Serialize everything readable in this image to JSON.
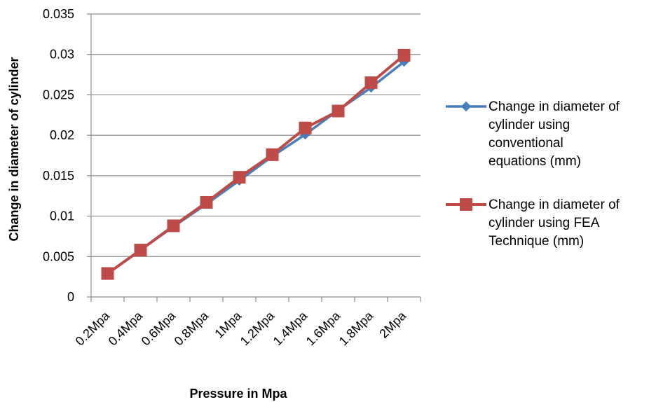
{
  "chart_data": {
    "type": "line",
    "title": "",
    "xlabel": "Pressure in Mpa",
    "ylabel": "Change in diameter of cylinder",
    "categories": [
      "0.2Mpa",
      "0.4Mpa",
      "0.6Mpa",
      "0.8Mpa",
      "1Mpa",
      "1.2Mpa",
      "1.4Mpa",
      "1.6Mpa",
      "1.8Mpa",
      "2Mpa"
    ],
    "ylim": [
      0,
      0.035
    ],
    "yticks": [
      "0",
      "0.005",
      "0.01",
      "0.015",
      "0.02",
      "0.025",
      "0.03",
      "0.035"
    ],
    "grid": "horizontal",
    "legend_position": "right",
    "series": [
      {
        "name": "Change in diameter of cylinder using conventional equations (mm)",
        "legend_lines": [
          "Change in diameter of",
          "cylinder using",
          "conventional",
          "equations (mm)"
        ],
        "marker": "diamond",
        "color": "#4a7ebb",
        "values": [
          0.0029,
          0.0058,
          0.0087,
          0.0115,
          0.0144,
          0.0174,
          0.0201,
          0.0231,
          0.0259,
          0.0291
        ]
      },
      {
        "name": "Change in diameter of cylinder using FEA Technique (mm)",
        "legend_lines": [
          "Change in diameter of",
          "cylinder using FEA",
          "Technique (mm)"
        ],
        "marker": "square",
        "color": "#be4b48",
        "values": [
          0.0029,
          0.0058,
          0.0088,
          0.0117,
          0.0148,
          0.0176,
          0.0209,
          0.023,
          0.0265,
          0.0299
        ]
      }
    ]
  }
}
